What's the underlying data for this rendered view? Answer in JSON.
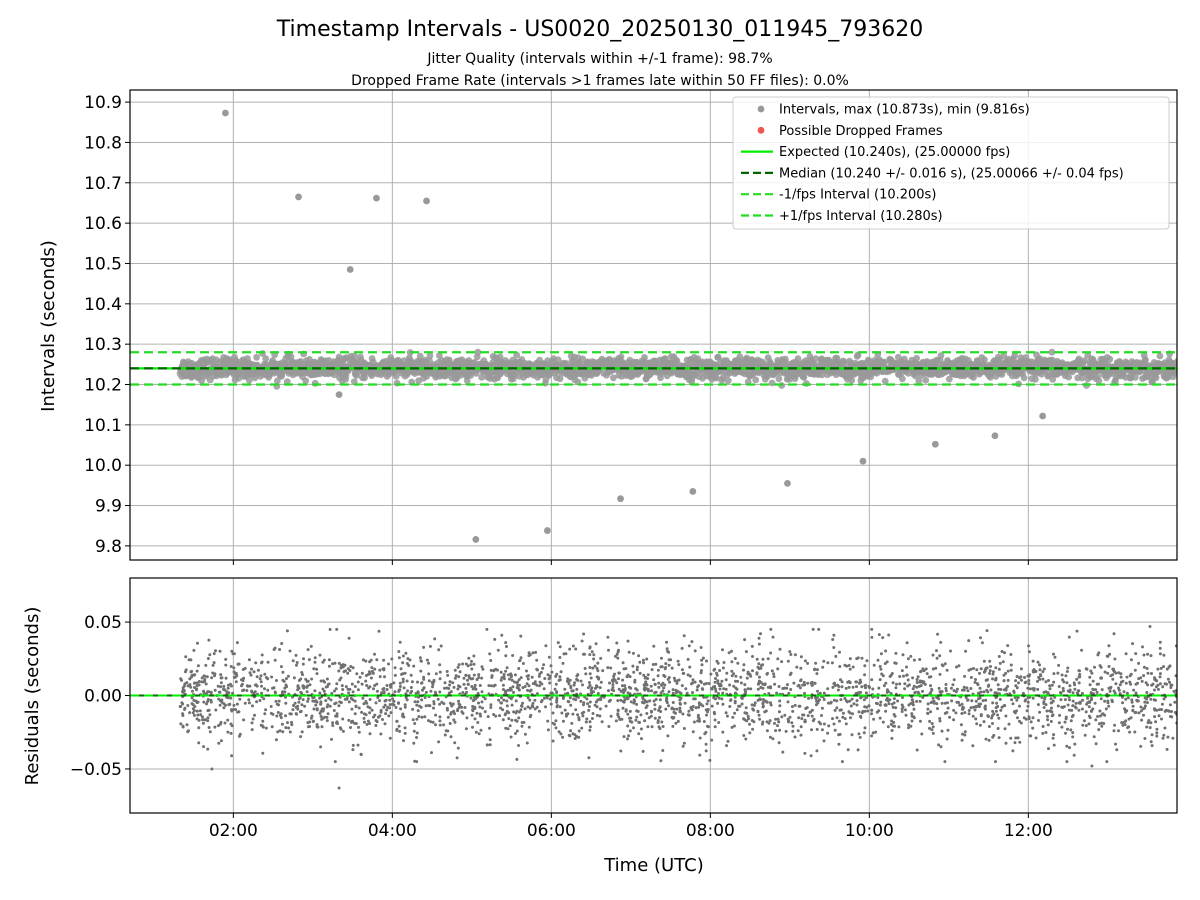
{
  "chart_data": {
    "type": "scatter",
    "title": "Timestamp Intervals - US0020_20250130_011945_793620",
    "subtitle_lines": [
      "Jitter Quality (intervals within +/-1 frame): 98.7%",
      "Dropped Frame Rate (intervals >1 frames late within 50 FF files): 0.0%"
    ],
    "xlabel": "Time (UTC)",
    "x_ticks": [
      "02:00",
      "04:00",
      "06:00",
      "08:00",
      "10:00",
      "12:00"
    ],
    "x_tick_hours": [
      2,
      4,
      6,
      8,
      10,
      12
    ],
    "xlim_hours": [
      0.7,
      13.87
    ],
    "data_start_hour": 1.33,
    "data_end_hour": 13.87,
    "colors": {
      "intervals": "#999999",
      "dropped": "#ee5555",
      "expected": "#00ee00",
      "median": "#006400",
      "bounds": "#22dd22",
      "residuals": "#707070"
    },
    "panels": [
      {
        "id": "intervals",
        "ylabel": "Intervals (seconds)",
        "ylim": [
          9.765,
          10.93
        ],
        "y_ticks": [
          "9.8",
          "9.9",
          "10.0",
          "10.1",
          "10.2",
          "10.3",
          "10.4",
          "10.5",
          "10.6",
          "10.7",
          "10.8",
          "10.9"
        ],
        "y_tick_values": [
          9.8,
          9.9,
          10.0,
          10.1,
          10.2,
          10.3,
          10.4,
          10.5,
          10.6,
          10.7,
          10.8,
          10.9
        ],
        "band_center": 10.24,
        "band_spread": 0.016,
        "outliers": [
          {
            "t": 1.9,
            "v": 10.873
          },
          {
            "t": 2.82,
            "v": 10.665
          },
          {
            "t": 3.47,
            "v": 10.485
          },
          {
            "t": 3.8,
            "v": 10.662
          },
          {
            "t": 4.43,
            "v": 10.655
          },
          {
            "t": 3.33,
            "v": 10.175
          },
          {
            "t": 5.05,
            "v": 9.816
          },
          {
            "t": 5.95,
            "v": 9.838
          },
          {
            "t": 6.87,
            "v": 9.917
          },
          {
            "t": 7.78,
            "v": 9.935
          },
          {
            "t": 8.97,
            "v": 9.955
          },
          {
            "t": 9.92,
            "v": 10.01
          },
          {
            "t": 10.83,
            "v": 10.052
          },
          {
            "t": 11.58,
            "v": 10.073
          },
          {
            "t": 12.18,
            "v": 10.122
          }
        ],
        "lines": {
          "expected": 10.24,
          "median": 10.24,
          "lower": 10.2,
          "upper": 10.28
        }
      },
      {
        "id": "residuals",
        "ylabel": "Residuals (seconds)",
        "ylim": [
          -0.08,
          0.08
        ],
        "y_ticks": [
          "−0.05",
          "0.00",
          "0.05"
        ],
        "y_tick_values": [
          -0.05,
          0,
          0.05
        ],
        "spread": 0.016,
        "outliers": [
          {
            "t": 3.33,
            "v": -0.063
          },
          {
            "t": 1.73,
            "v": -0.05
          },
          {
            "t": 12.8,
            "v": -0.048
          },
          {
            "t": 13.53,
            "v": 0.047
          },
          {
            "t": 10.03,
            "v": 0.045
          },
          {
            "t": 2.68,
            "v": 0.044
          },
          {
            "t": 3.3,
            "v": 0.045
          }
        ]
      }
    ],
    "legend": {
      "placement": "top-right",
      "entries": [
        {
          "label": "Intervals, max (10.873s), min (9.816s)",
          "style": "dot-gray"
        },
        {
          "label": "Possible Dropped Frames",
          "style": "dot-red"
        },
        {
          "label": "Expected (10.240s), (25.00000 fps)",
          "style": "line-expected"
        },
        {
          "label": "Median (10.240 +/- 0.016 s), (25.00066 +/- 0.04 fps)",
          "style": "dash-median"
        },
        {
          "label": "-1/fps Interval (10.200s)",
          "style": "dash-bounds"
        },
        {
          "label": "+1/fps Interval (10.280s)",
          "style": "dash-bounds"
        }
      ]
    }
  }
}
